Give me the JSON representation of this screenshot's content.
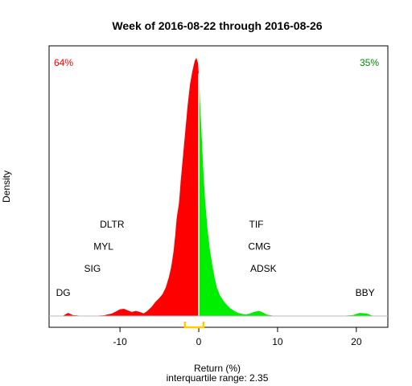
{
  "chart_data": {
    "type": "area",
    "title": "Week of 2016-08-22 through 2016-08-26",
    "xlabel": "Return (%)",
    "ylabel": "Density",
    "subtitle": "interquartile range: 2.35",
    "xlim": [
      -19,
      24
    ],
    "ylim": [
      0,
      1.0
    ],
    "x_ticks": [
      -10,
      0,
      10,
      20
    ],
    "grid": false,
    "split_at": 0,
    "negative_share": "64%",
    "positive_share": "35%",
    "colors": {
      "negative": "#ff0000",
      "positive": "#00ee00",
      "negative_text": "#ff0000",
      "positive_text": "#008800",
      "iqr_bracket": "#ffcc00",
      "axis": "#000000"
    },
    "density": {
      "x": [
        -19,
        -17.3,
        -16.6,
        -16,
        -15,
        -14,
        -13,
        -12,
        -11,
        -10.5,
        -10,
        -9.5,
        -9,
        -8.5,
        -8,
        -7.5,
        -7,
        -6.6,
        -6,
        -5.5,
        -5,
        -4.6,
        -4.2,
        -3.8,
        -3.5,
        -3.2,
        -3,
        -2.8,
        -2.5,
        -2.3,
        -2,
        -1.7,
        -1.4,
        -1.1,
        -0.8,
        -0.5,
        -0.3,
        -0.1,
        0,
        0.1,
        0.2,
        0.4,
        0.6,
        0.8,
        1.1,
        1.4,
        1.7,
        2,
        2.3,
        2.7,
        3.1,
        3.5,
        4,
        4.5,
        5,
        5.5,
        6,
        6.5,
        7,
        7.6,
        8,
        8.6,
        9.5,
        11,
        13,
        16,
        18,
        19.6,
        20.4,
        21.3,
        22,
        24
      ],
      "y": [
        0,
        0,
        0.012,
        0.004,
        0.001,
        0,
        0.001,
        0.003,
        0.01,
        0.018,
        0.026,
        0.028,
        0.022,
        0.016,
        0.02,
        0.016,
        0.01,
        0.018,
        0.035,
        0.055,
        0.07,
        0.085,
        0.11,
        0.15,
        0.19,
        0.25,
        0.31,
        0.38,
        0.44,
        0.52,
        0.62,
        0.72,
        0.82,
        0.9,
        0.95,
        0.99,
        1.0,
        0.98,
        0.94,
        0.88,
        0.8,
        0.68,
        0.55,
        0.45,
        0.34,
        0.26,
        0.2,
        0.15,
        0.11,
        0.08,
        0.06,
        0.045,
        0.03,
        0.02,
        0.012,
        0.008,
        0.006,
        0.01,
        0.016,
        0.02,
        0.016,
        0.006,
        0.001,
        0,
        0,
        0,
        0,
        0.004,
        0.012,
        0.01,
        0.002,
        0
      ]
    },
    "annotations": [
      {
        "text": "DG",
        "x": -17.2,
        "y": 0.078
      },
      {
        "text": "SIG",
        "x": -13.5,
        "y": 0.171
      },
      {
        "text": "MYL",
        "x": -12.1,
        "y": 0.257
      },
      {
        "text": "DLTR",
        "x": -11.0,
        "y": 0.343
      },
      {
        "text": "TIF",
        "x": 7.3,
        "y": 0.343
      },
      {
        "text": "CMG",
        "x": 7.7,
        "y": 0.257
      },
      {
        "text": "ADSK",
        "x": 8.2,
        "y": 0.171
      },
      {
        "text": "BBY",
        "x": 21.1,
        "y": 0.078
      }
    ],
    "iqr_bracket": [
      -1.75,
      0.6
    ]
  }
}
